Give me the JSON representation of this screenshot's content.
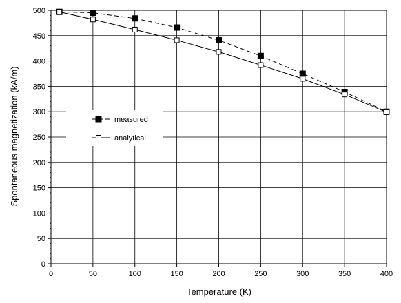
{
  "chart_data": {
    "type": "line",
    "title": "",
    "xlabel": "Temperature (K)",
    "ylabel": "Spontaneous magnetization (kA/m)",
    "xlim": [
      0,
      400
    ],
    "ylim": [
      0,
      500
    ],
    "xticks": [
      "0",
      "50",
      "100",
      "150",
      "200",
      "250",
      "300",
      "350",
      "400"
    ],
    "yticks": [
      "0",
      "50",
      "100",
      "150",
      "200",
      "250",
      "300",
      "350",
      "400",
      "450",
      "500"
    ],
    "grid": true,
    "legend_position": "left-middle",
    "series": [
      {
        "name": "measured",
        "marker": "filled-square",
        "line": "dashed",
        "x": [
          10,
          50,
          100,
          150,
          200,
          250,
          300,
          350,
          400
        ],
        "y": [
          497,
          495,
          484,
          466,
          441,
          410,
          375,
          339,
          300
        ]
      },
      {
        "name": "analytical",
        "marker": "open-square",
        "line": "solid",
        "x": [
          10,
          50,
          100,
          150,
          200,
          250,
          300,
          350,
          400
        ],
        "y": [
          497,
          482,
          462,
          441,
          418,
          392,
          365,
          334,
          299
        ]
      }
    ]
  }
}
